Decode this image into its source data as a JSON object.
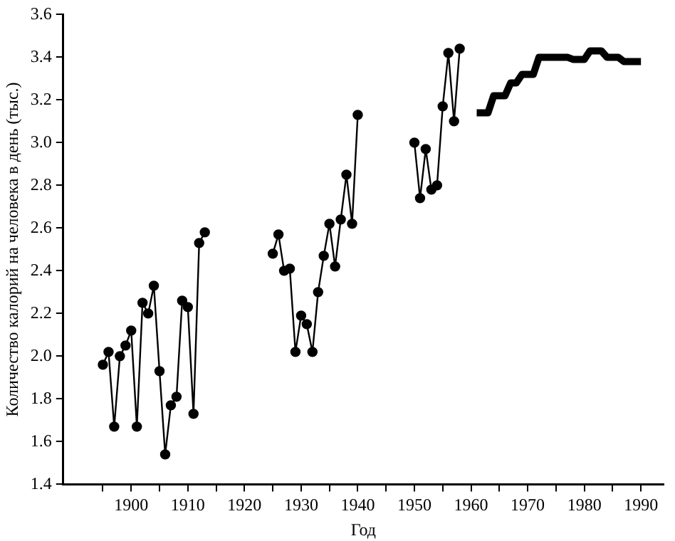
{
  "chart_data": {
    "type": "line",
    "xlabel": "Год",
    "ylabel": "Количество калорий на человека в день (тыс.)",
    "xlim": [
      1888,
      1994
    ],
    "ylim": [
      1.4,
      3.6
    ],
    "xticks": [
      {
        "value": 1895,
        "label": null
      },
      1900,
      {
        "value": 1905,
        "label": null
      },
      1910,
      {
        "value": 1915,
        "label": null
      },
      1920,
      {
        "value": 1925,
        "label": null
      },
      1930,
      {
        "value": 1935,
        "label": null
      },
      1940,
      {
        "value": 1945,
        "label": null
      },
      1950,
      {
        "value": 1955,
        "label": null
      },
      1960,
      {
        "value": 1965,
        "label": null
      },
      1970,
      {
        "value": 1975,
        "label": null
      },
      1980,
      {
        "value": 1985,
        "label": null
      },
      1990
    ],
    "yticks": [
      1.4,
      1.6,
      1.8,
      {
        "value": 2,
        "label": "2.0"
      },
      2.2,
      2.4,
      2.6,
      2.8,
      {
        "value": 3,
        "label": "3.0"
      },
      3.2,
      3.4,
      3.6
    ],
    "grid": false,
    "legend": false,
    "marker": "circle",
    "line_style": "solid",
    "series": [
      {
        "color": "#000000",
        "x": [
          1895,
          1896,
          1897,
          1898,
          1899,
          1900,
          1901,
          1902,
          1903,
          1904,
          1905,
          1906,
          1907,
          1908,
          1909,
          1910,
          1911,
          1912,
          1913
        ],
        "values": [
          1.96,
          2.02,
          1.67,
          2.0,
          2.05,
          2.12,
          1.67,
          2.25,
          2.2,
          2.33,
          1.93,
          1.54,
          1.77,
          1.81,
          2.26,
          2.23,
          1.73,
          2.53,
          2.58
        ]
      },
      {
        "color": "#000000",
        "x": [
          1925,
          1926,
          1927,
          1928,
          1929,
          1930,
          1931,
          1932,
          1933,
          1934,
          1935,
          1936,
          1937,
          1938,
          1939,
          1940
        ],
        "values": [
          2.48,
          2.57,
          2.4,
          2.41,
          2.02,
          2.19,
          2.15,
          2.02,
          2.3,
          2.47,
          2.62,
          2.42,
          2.64,
          2.85,
          2.62,
          3.13
        ]
      },
      {
        "color": "#000000",
        "x": [
          1950,
          1951,
          1952,
          1953,
          1954,
          1955,
          1956,
          1957,
          1958
        ],
        "values": [
          3.0,
          2.74,
          2.97,
          2.78,
          2.8,
          3.17,
          3.42,
          3.1,
          3.44
        ]
      },
      {
        "color": "#000000",
        "marker": "none",
        "x": [
          1961,
          1962,
          1963,
          1964,
          1965,
          1966,
          1967,
          1968,
          1969,
          1970,
          1971,
          1972,
          1973,
          1974,
          1975,
          1976,
          1977,
          1978,
          1979,
          1980,
          1981,
          1982,
          1983,
          1984,
          1985,
          1986,
          1987,
          1988,
          1989,
          1990
        ],
        "values": [
          3.14,
          3.14,
          3.14,
          3.22,
          3.22,
          3.22,
          3.28,
          3.28,
          3.32,
          3.32,
          3.32,
          3.4,
          3.4,
          3.4,
          3.4,
          3.4,
          3.4,
          3.39,
          3.39,
          3.39,
          3.43,
          3.43,
          3.43,
          3.4,
          3.4,
          3.4,
          3.38,
          3.38,
          3.38,
          3.38
        ]
      }
    ]
  }
}
